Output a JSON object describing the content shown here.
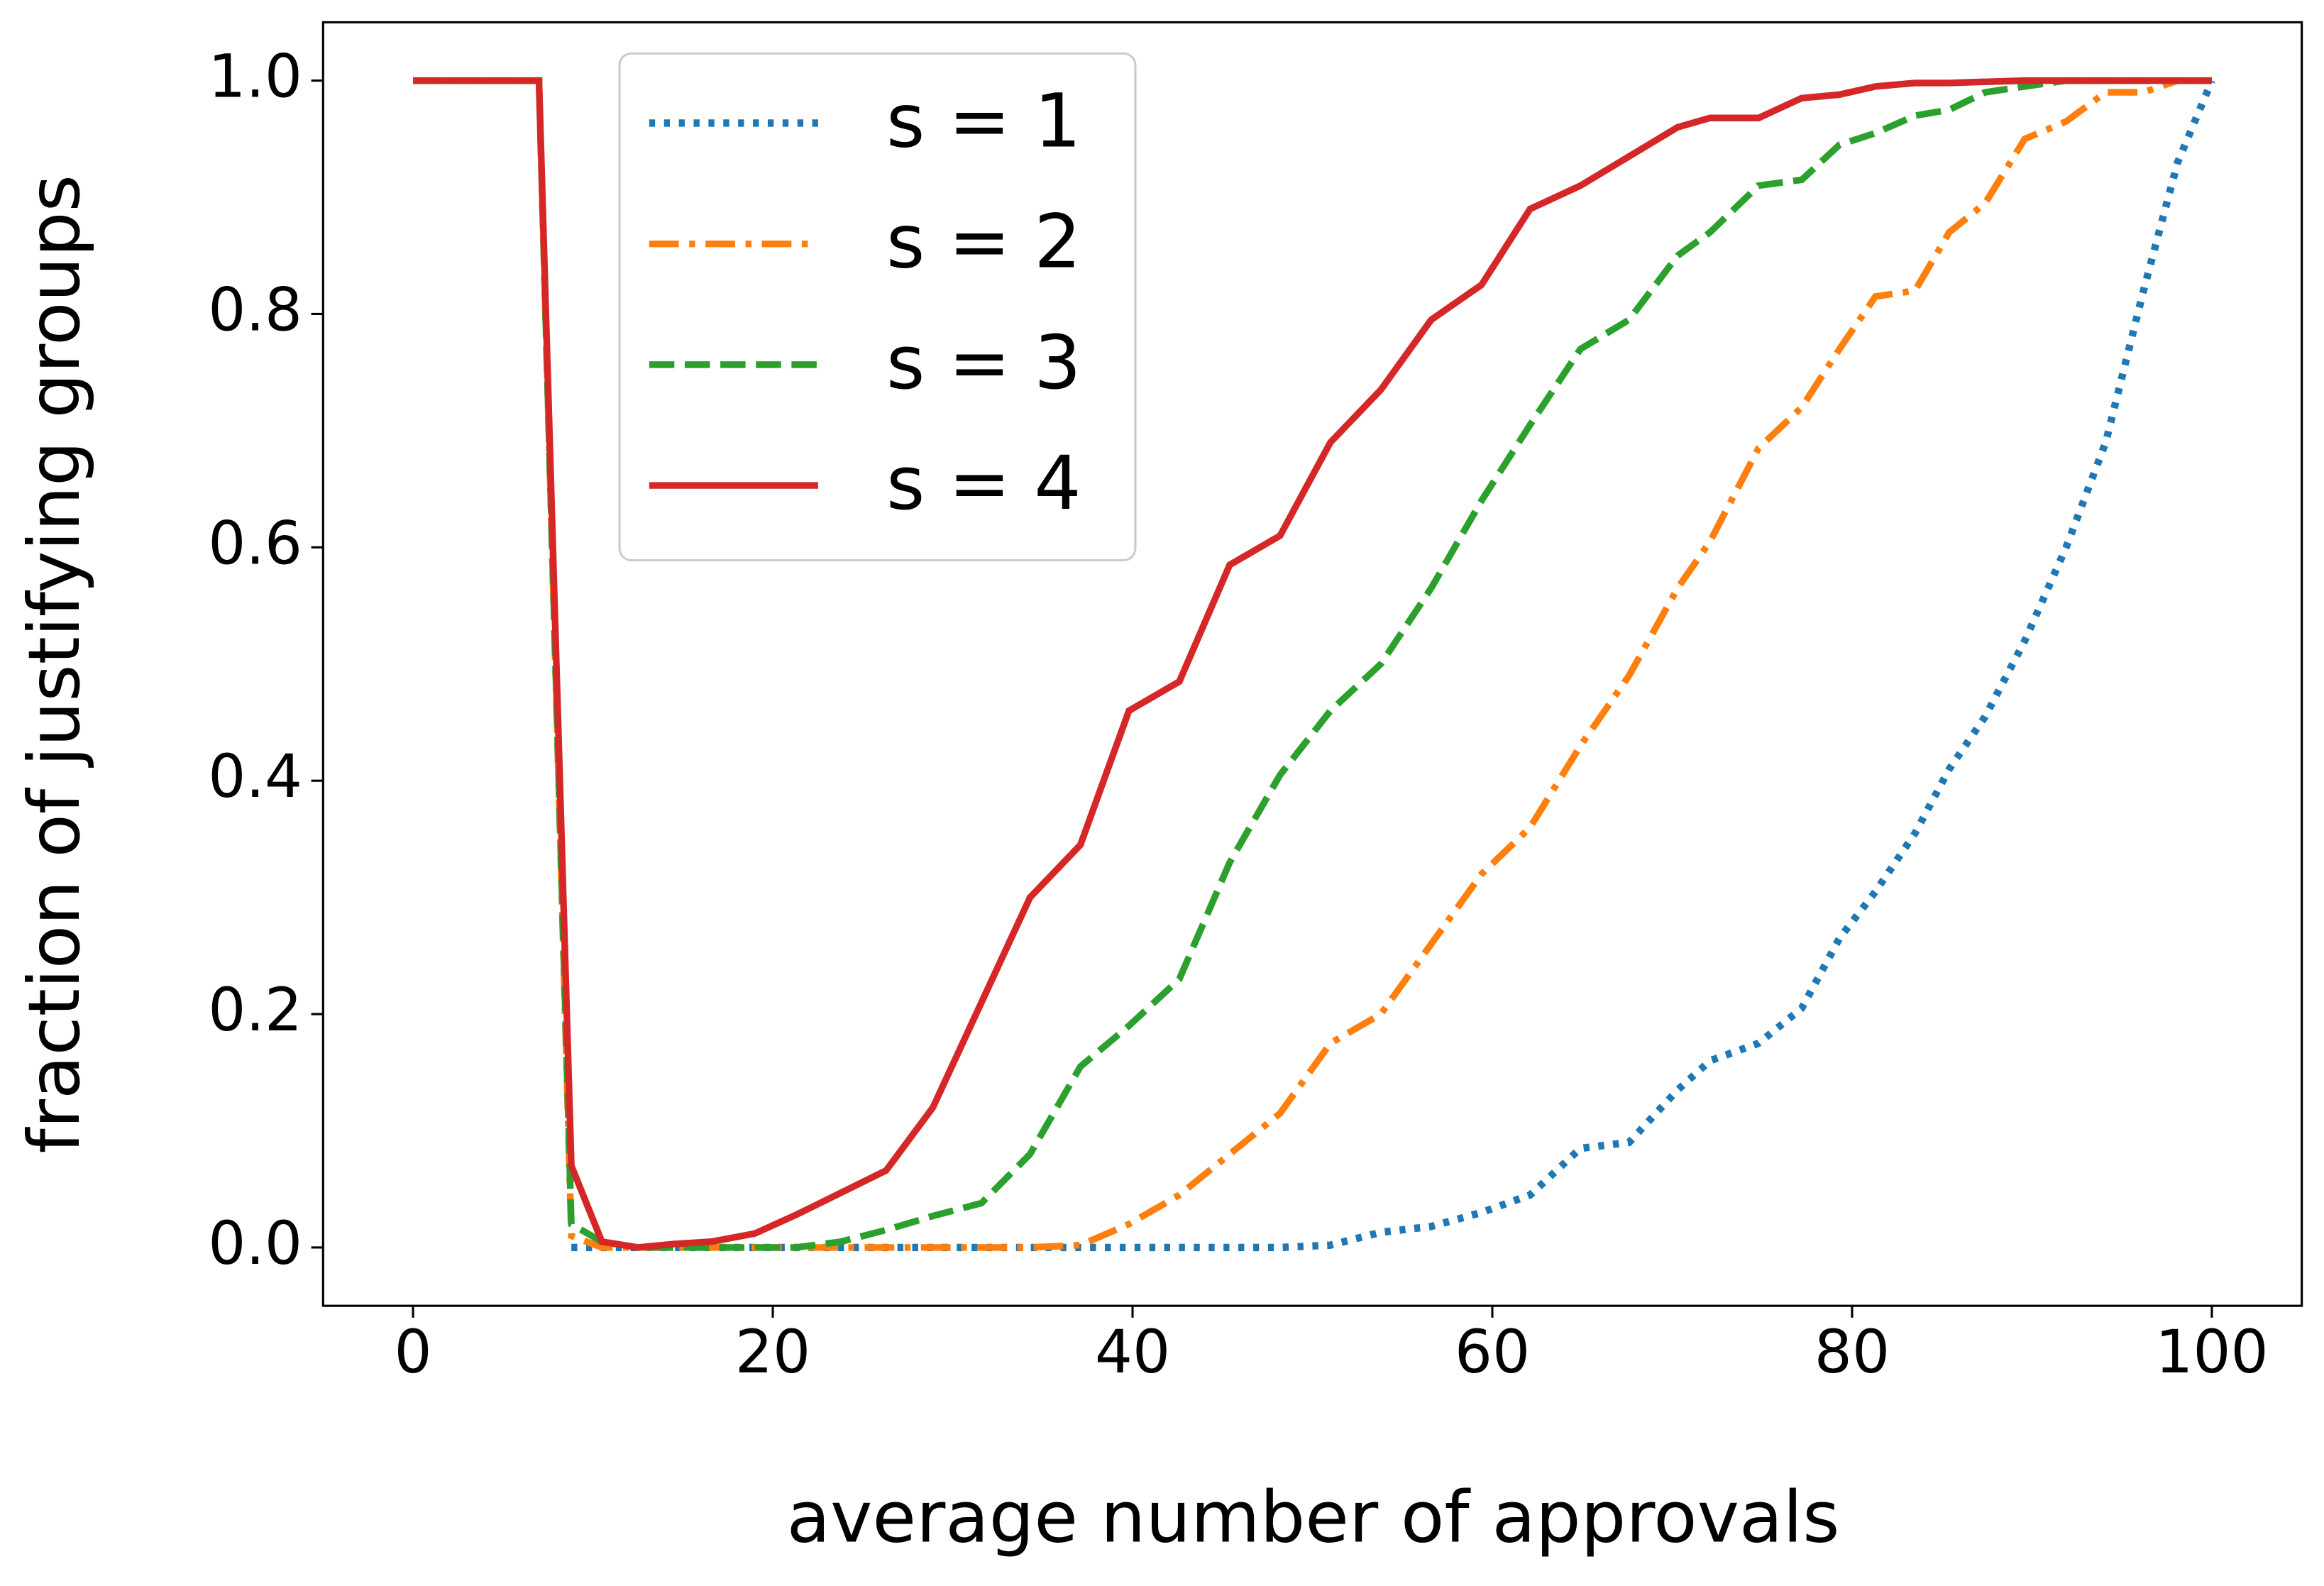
{
  "chart_data": {
    "type": "line",
    "xlabel": "average number of approvals",
    "ylabel": "fraction of justifying groups",
    "x": [
      0,
      7,
      8.8,
      10.5,
      12.5,
      14.5,
      16.6,
      19,
      21.3,
      23.8,
      26.3,
      28.9,
      31.6,
      34.3,
      37.1,
      39.8,
      42.6,
      45.4,
      48.2,
      51,
      53.8,
      56.6,
      59.4,
      62.1,
      64.9,
      67.6,
      70.3,
      72.1,
      74.8,
      77.2,
      79.3,
      81.3,
      83.5,
      85.4,
      87.4,
      89.6,
      91.9,
      94.1,
      96.2,
      98.1,
      100
    ],
    "series": [
      {
        "name": "s = 1",
        "color": "#1f77b4",
        "linestyle": "dotted",
        "values": [
          null,
          null,
          0,
          0,
          0,
          0,
          0,
          0,
          0,
          0,
          0,
          0,
          0,
          0,
          0,
          0,
          0,
          0,
          0,
          0.002,
          0.013,
          0.018,
          0.03,
          0.045,
          0.085,
          0.09,
          0.135,
          0.16,
          0.175,
          0.205,
          0.265,
          0.305,
          0.355,
          0.41,
          0.455,
          0.52,
          0.6,
          0.69,
          0.82,
          0.93,
          1
        ]
      },
      {
        "name": "s = 2",
        "color": "#ff7f0e",
        "linestyle": "dashdot",
        "values": [
          1,
          1,
          0.01,
          0,
          0,
          0,
          0,
          0,
          0,
          0,
          0,
          0,
          0,
          0,
          0.002,
          0.02,
          0.045,
          0.08,
          0.115,
          0.175,
          0.2,
          0.26,
          0.32,
          0.36,
          0.43,
          0.49,
          0.565,
          0.605,
          0.685,
          0.72,
          0.77,
          0.815,
          0.82,
          0.87,
          0.895,
          0.95,
          0.965,
          0.99,
          0.99,
          1,
          1
        ]
      },
      {
        "name": "s = 3",
        "color": "#2ca02c",
        "linestyle": "dashed",
        "values": [
          1,
          1,
          0.02,
          0.005,
          0,
          0,
          0,
          0,
          0,
          0.005,
          0.015,
          0.027,
          0.038,
          0.08,
          0.155,
          0.19,
          0.23,
          0.33,
          0.405,
          0.46,
          0.5,
          0.565,
          0.64,
          0.705,
          0.77,
          0.795,
          0.85,
          0.87,
          0.91,
          0.915,
          0.945,
          0.955,
          0.97,
          0.975,
          0.99,
          0.995,
          1,
          1,
          1,
          1,
          1
        ]
      },
      {
        "name": "s = 4",
        "color": "#d62728",
        "linestyle": "solid",
        "values": [
          1,
          1,
          0.07,
          0.005,
          0,
          0.003,
          0.005,
          0.012,
          0.028,
          0.047,
          0.066,
          0.12,
          0.21,
          0.3,
          0.345,
          0.46,
          0.485,
          0.585,
          0.61,
          0.69,
          0.735,
          0.795,
          0.825,
          0.89,
          0.91,
          0.935,
          0.96,
          0.968,
          0.968,
          0.985,
          0.988,
          0.995,
          0.998,
          0.998,
          0.999,
          1,
          1,
          1,
          1,
          1,
          1
        ]
      }
    ],
    "xlim": [
      -5,
      105
    ],
    "ylim": [
      -0.05,
      1.05
    ],
    "xticks": [
      0,
      20,
      40,
      60,
      80,
      100
    ],
    "yticks": [
      {
        "value": 0,
        "label": "0.0"
      },
      {
        "value": 0.2,
        "label": "0.2"
      },
      {
        "value": 0.4,
        "label": "0.4"
      },
      {
        "value": 0.6,
        "label": "0.6"
      },
      {
        "value": 0.8,
        "label": "0.8"
      },
      {
        "value": 1,
        "label": "1.0"
      }
    ],
    "legend": "upper left",
    "grid": false
  }
}
